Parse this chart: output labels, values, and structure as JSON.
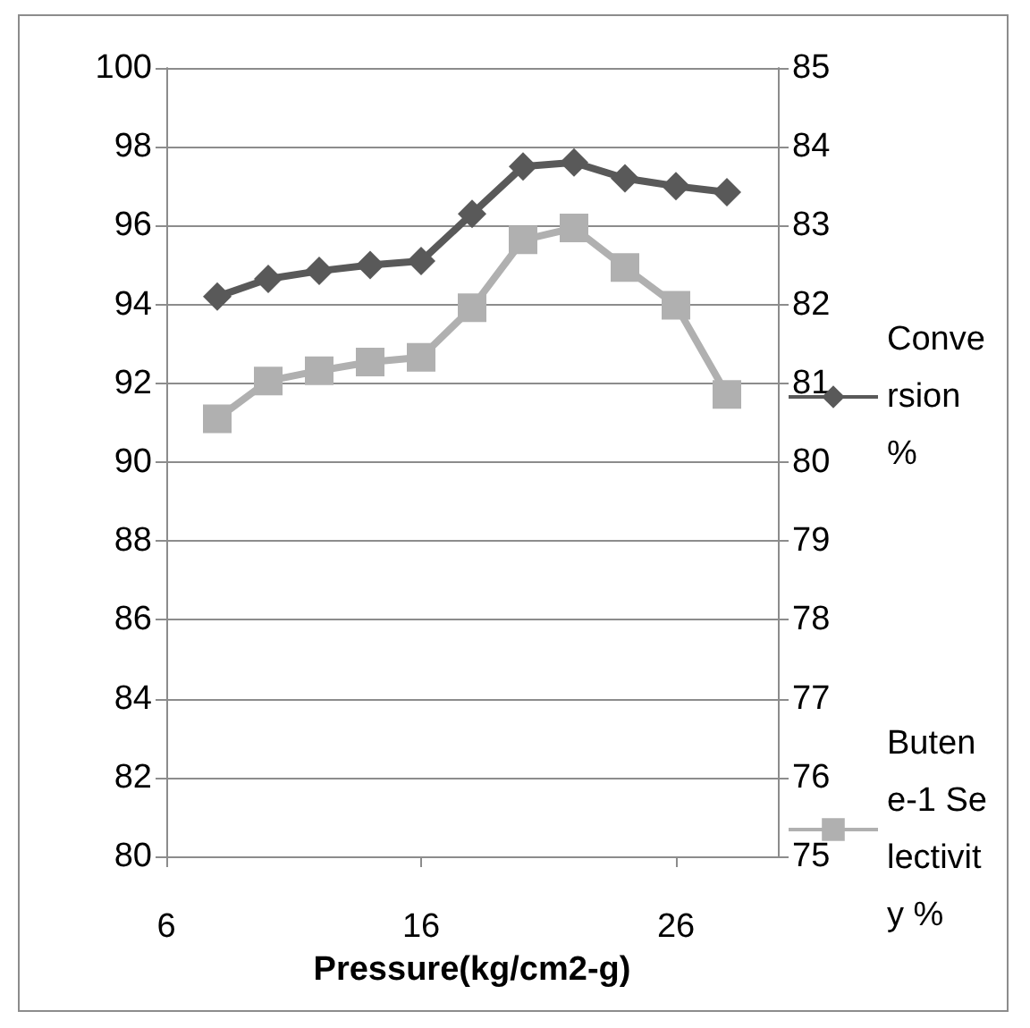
{
  "chart_data": {
    "type": "line",
    "xlabel": "Pressure(kg/cm2-g)",
    "x": [
      8,
      10,
      12,
      14,
      16,
      18,
      20,
      22,
      24,
      26,
      28
    ],
    "series": [
      {
        "name": "Conversion %",
        "color": "#595959",
        "marker": "diamond",
        "values": [
          94.2,
          94.65,
          94.85,
          95.0,
          95.1,
          96.3,
          97.5,
          97.6,
          97.2,
          97.0,
          96.85
        ]
      },
      {
        "name": "Butene-1 Selectivity %",
        "color": "#b0b0b0",
        "marker": "square",
        "axis": "y2",
        "values": [
          80.55,
          81.03,
          81.16,
          81.27,
          81.33,
          81.96,
          82.82,
          82.97,
          82.47,
          81.99,
          80.86
        ]
      }
    ],
    "xlim": [
      6,
      30
    ],
    "xticks": [
      6,
      16,
      26
    ],
    "ylim": [
      80,
      100
    ],
    "yticks": [
      80,
      82,
      84,
      86,
      88,
      90,
      92,
      94,
      96,
      98,
      100
    ],
    "y2lim": [
      75,
      85
    ],
    "y2ticks": [
      75,
      76,
      77,
      78,
      79,
      80,
      81,
      82,
      83,
      84,
      85
    ],
    "grid": "y",
    "legend": "right",
    "line_style": "solid"
  }
}
